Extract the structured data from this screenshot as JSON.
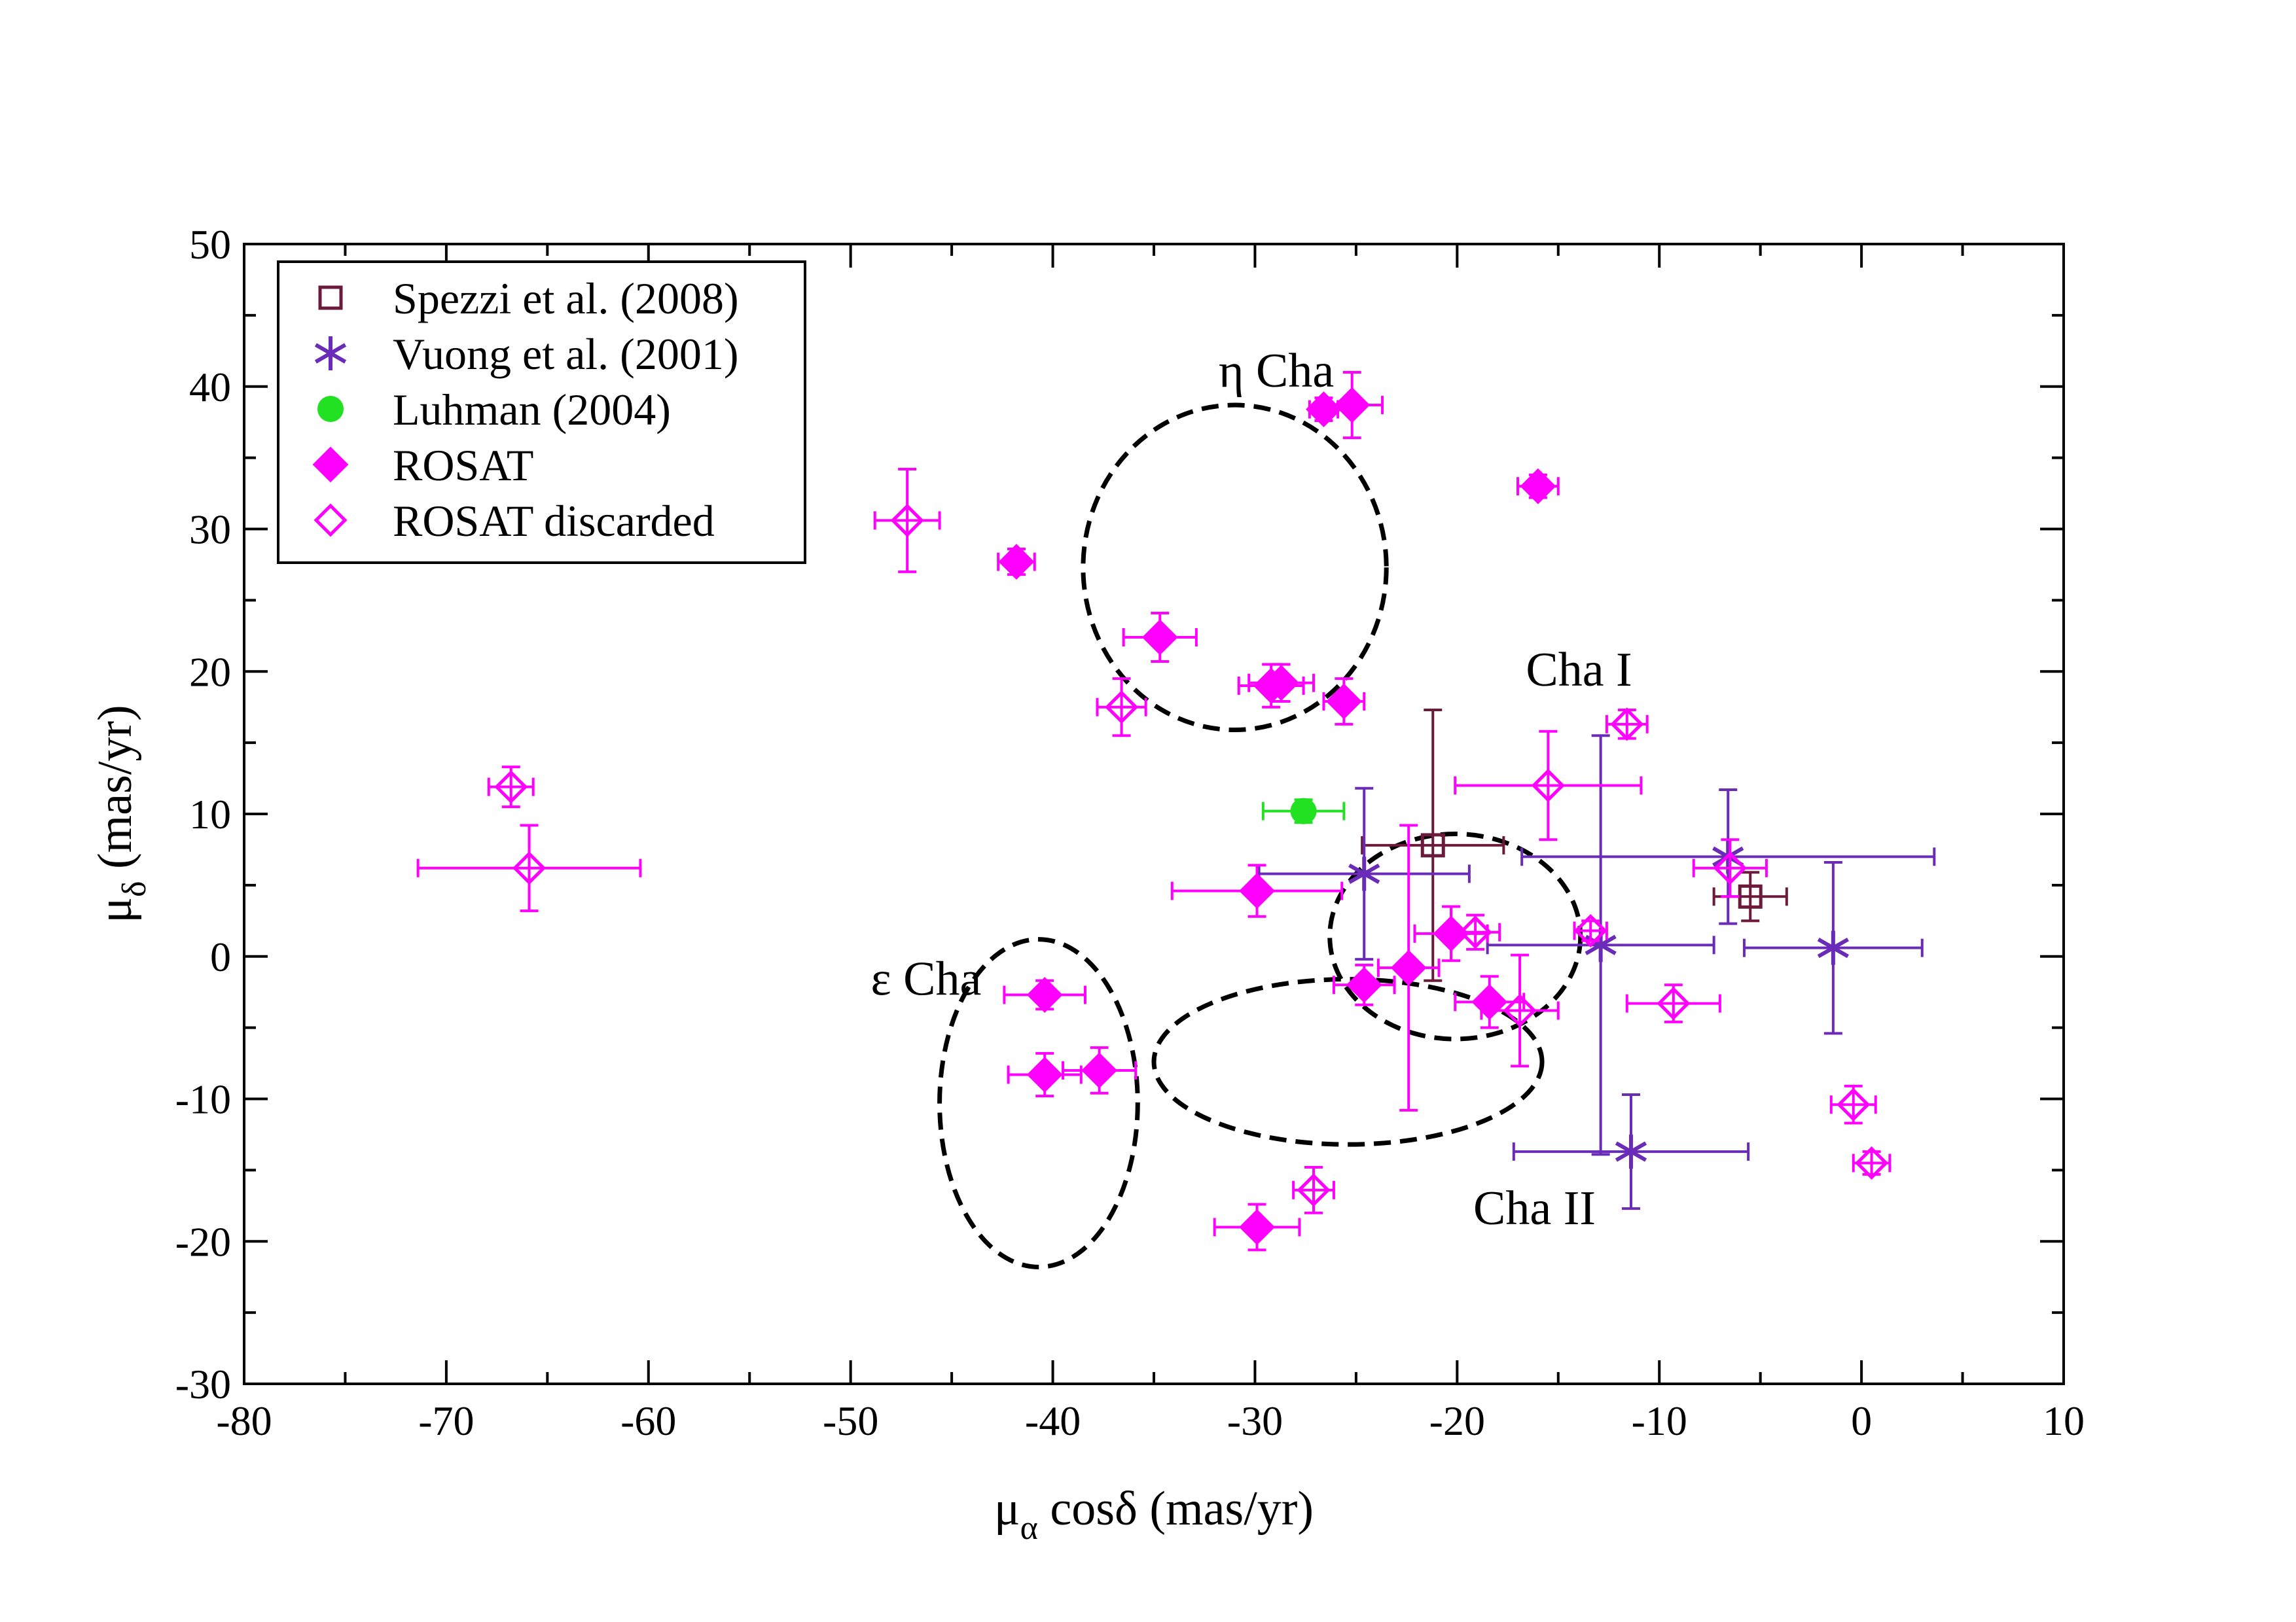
{
  "chart_data": {
    "type": "scatter",
    "title": "",
    "xlabel": {
      "main": "μ",
      "sub": "α",
      "rest": " cosδ (mas/yr)"
    },
    "ylabel": {
      "main": "μ",
      "sub": "δ",
      "rest": " (mas/yr)"
    },
    "xlim": [
      -80,
      10
    ],
    "ylim": [
      -30,
      50
    ],
    "x_ticks": [
      -80,
      -70,
      -60,
      -50,
      -40,
      -30,
      -20,
      -10,
      0,
      10
    ],
    "y_ticks": [
      -30,
      -20,
      -10,
      0,
      10,
      20,
      30,
      40,
      50
    ],
    "legend_position": "top-left",
    "colors": {
      "spezzi": "#6b1a3c",
      "vuong": "#6a2cb8",
      "luhman": "#22e022",
      "rosat": "#ff00ff",
      "rosat_discarded": "#ff00ff",
      "ellipse": "#000000"
    },
    "series": [
      {
        "name": "Spezzi et al. (2008)",
        "key": "spezzi",
        "marker": "open-square",
        "points": [
          {
            "x": -21.2,
            "y": 7.8,
            "xerr": 3.5,
            "yerr": 9.5
          },
          {
            "x": -5.5,
            "y": 4.2,
            "xerr": 1.8,
            "yerr": 1.7
          }
        ]
      },
      {
        "name": "Vuong et al. (2001)",
        "key": "vuong",
        "marker": "star",
        "points": [
          {
            "x": -24.6,
            "y": 5.8,
            "xerr": 5.2,
            "yerr": 6.0
          },
          {
            "x": -12.9,
            "y": 0.8,
            "xerr": 5.6,
            "yerr": 14.7
          },
          {
            "x": -11.4,
            "y": -13.7,
            "xerr": 5.8,
            "yerr": 4.0
          },
          {
            "x": -6.6,
            "y": 7.0,
            "xerr": 10.2,
            "yerr": 4.7
          },
          {
            "x": -1.4,
            "y": 0.6,
            "xerr": 4.4,
            "yerr": 6.0
          }
        ]
      },
      {
        "name": "Luhman (2004)",
        "key": "luhman",
        "marker": "filled-circle",
        "points": [
          {
            "x": -27.6,
            "y": 10.2,
            "xerr": 2.0,
            "yerr": 0.8
          }
        ]
      },
      {
        "name": "ROSAT",
        "key": "rosat",
        "marker": "filled-diamond",
        "points": [
          {
            "x": -41.8,
            "y": 27.7,
            "xerr": 0.9,
            "yerr": 0.9
          },
          {
            "x": -34.7,
            "y": 22.4,
            "xerr": 1.8,
            "yerr": 1.7
          },
          {
            "x": -29.2,
            "y": 19.0,
            "xerr": 1.6,
            "yerr": 1.5
          },
          {
            "x": -28.7,
            "y": 19.2,
            "xerr": 1.6,
            "yerr": 1.3
          },
          {
            "x": -26.6,
            "y": 38.4,
            "xerr": 0.7,
            "yerr": 0.8
          },
          {
            "x": -25.2,
            "y": 38.7,
            "xerr": 1.5,
            "yerr": 2.3
          },
          {
            "x": -25.6,
            "y": 17.9,
            "xerr": 1.0,
            "yerr": 1.6
          },
          {
            "x": -16.0,
            "y": 33.0,
            "xerr": 1.0,
            "yerr": 0.8
          },
          {
            "x": -29.9,
            "y": 4.6,
            "xerr": 4.2,
            "yerr": 1.8
          },
          {
            "x": -40.4,
            "y": -2.7,
            "xerr": 2.0,
            "yerr": 1.0
          },
          {
            "x": -40.4,
            "y": -8.3,
            "xerr": 1.8,
            "yerr": 1.5
          },
          {
            "x": -37.7,
            "y": -8.0,
            "xerr": 1.8,
            "yerr": 1.6
          },
          {
            "x": -29.9,
            "y": -19.0,
            "xerr": 2.1,
            "yerr": 1.6
          },
          {
            "x": -24.6,
            "y": -2.0,
            "xerr": 1.5,
            "yerr": 1.4
          },
          {
            "x": -22.4,
            "y": -0.8,
            "xerr": 1.5,
            "yerr": 10.0
          },
          {
            "x": -20.3,
            "y": 1.6,
            "xerr": 1.8,
            "yerr": 1.9
          },
          {
            "x": -18.4,
            "y": -3.2,
            "xerr": 1.7,
            "yerr": 1.8
          }
        ]
      },
      {
        "name": "ROSAT discarded",
        "key": "rosat_discarded",
        "marker": "open-diamond",
        "points": [
          {
            "x": -66.8,
            "y": 11.9,
            "xerr": 1.1,
            "yerr": 1.4
          },
          {
            "x": -65.9,
            "y": 6.2,
            "xerr": 5.5,
            "yerr": 3.0
          },
          {
            "x": -47.2,
            "y": 30.6,
            "xerr": 1.6,
            "yerr": 3.6
          },
          {
            "x": -36.6,
            "y": 17.5,
            "xerr": 1.2,
            "yerr": 2.0
          },
          {
            "x": -27.1,
            "y": -16.4,
            "xerr": 1.0,
            "yerr": 1.6
          },
          {
            "x": -19.1,
            "y": 1.7,
            "xerr": 1.2,
            "yerr": 1.2
          },
          {
            "x": -16.9,
            "y": -3.8,
            "xerr": 1.9,
            "yerr": 3.9
          },
          {
            "x": -15.5,
            "y": 12.0,
            "xerr": 4.6,
            "yerr": 3.8
          },
          {
            "x": -13.4,
            "y": 1.8,
            "xerr": 0.8,
            "yerr": 0.7
          },
          {
            "x": -11.6,
            "y": 16.3,
            "xerr": 1.0,
            "yerr": 1.0
          },
          {
            "x": -9.3,
            "y": -3.3,
            "xerr": 2.3,
            "yerr": 1.3
          },
          {
            "x": -6.5,
            "y": 6.2,
            "xerr": 1.8,
            "yerr": 2.0
          },
          {
            "x": -0.4,
            "y": -10.4,
            "xerr": 1.1,
            "yerr": 1.3
          },
          {
            "x": 0.5,
            "y": -14.5,
            "xerr": 0.9,
            "yerr": 0.8
          }
        ]
      }
    ],
    "ellipses": [
      {
        "name": "eta-cha-ellipse",
        "cx": -31.0,
        "cy": 27.3,
        "rx": 7.5,
        "ry": 11.4,
        "rotation": 0
      },
      {
        "name": "eps-cha-ellipse",
        "cx": -40.7,
        "cy": -10.3,
        "rx": 4.9,
        "ry": 11.5,
        "rotation": 0
      },
      {
        "name": "cha-i-ellipse",
        "cx": -20.1,
        "cy": 1.4,
        "rx": 6.2,
        "ry": 7.2,
        "rotation": 0
      },
      {
        "name": "cha-ii-ellipse",
        "cx": -25.4,
        "cy": -7.4,
        "rx": 9.6,
        "ry": 5.8,
        "rotation": 0
      }
    ],
    "annotations": [
      {
        "name": "eta-cha-label",
        "text": "η Cha",
        "x": -31.8,
        "y": 40.0
      },
      {
        "name": "eps-cha-label",
        "text": "ε Cha",
        "x": -49.0,
        "y": -2.7
      },
      {
        "name": "cha-i-label",
        "text": "Cha I",
        "x": -16.6,
        "y": 19.0
      },
      {
        "name": "cha-ii-label",
        "text": "Cha II",
        "x": -19.2,
        "y": -18.8
      }
    ]
  }
}
